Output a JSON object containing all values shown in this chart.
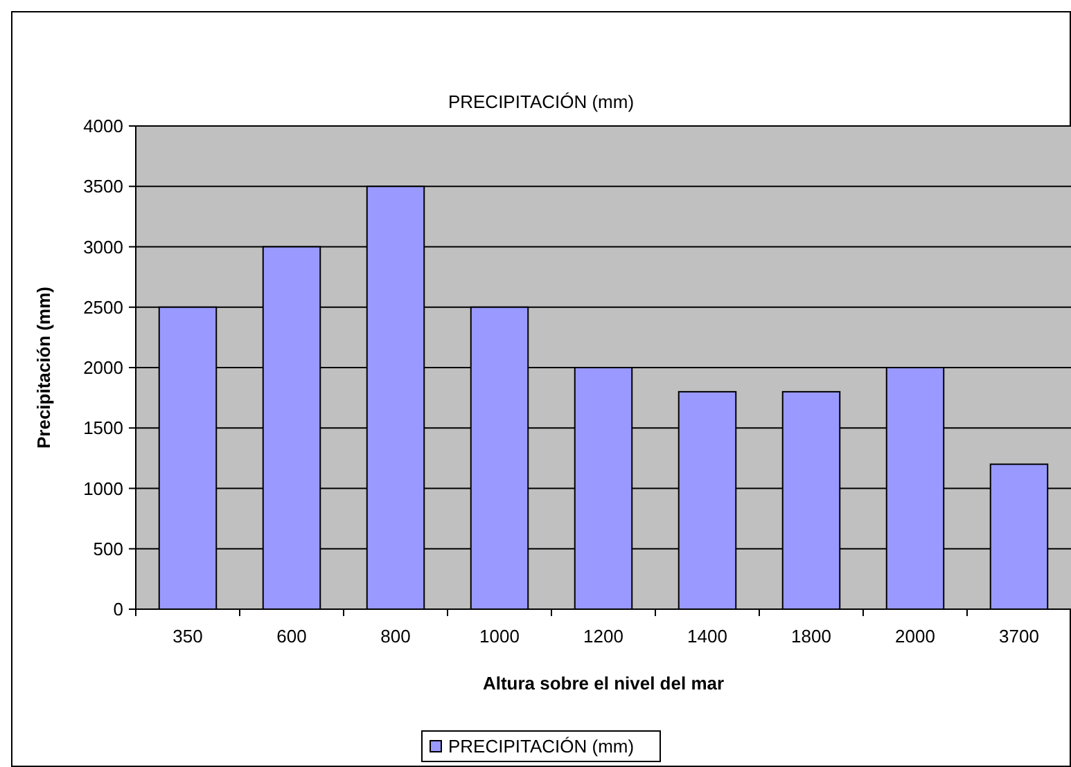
{
  "chart_data": {
    "type": "bar",
    "title": "PRECIPITACIÓN (mm)",
    "xlabel": "Altura sobre el nivel del mar",
    "ylabel": "Precipitación (mm)",
    "categories": [
      "350",
      "600",
      "800",
      "1000",
      "1200",
      "1400",
      "1800",
      "2000",
      "3700"
    ],
    "series": [
      {
        "name": "PRECIPITACIÓN (mm)",
        "color": "#9999ff",
        "values": [
          2500,
          3000,
          3500,
          2500,
          2000,
          1800,
          1800,
          2000,
          1200
        ]
      }
    ],
    "ylim": [
      0,
      4000
    ],
    "yticks": [
      0,
      500,
      1000,
      1500,
      2000,
      2500,
      3000,
      3500,
      4000
    ],
    "grid": "y",
    "legend": "bottom"
  }
}
